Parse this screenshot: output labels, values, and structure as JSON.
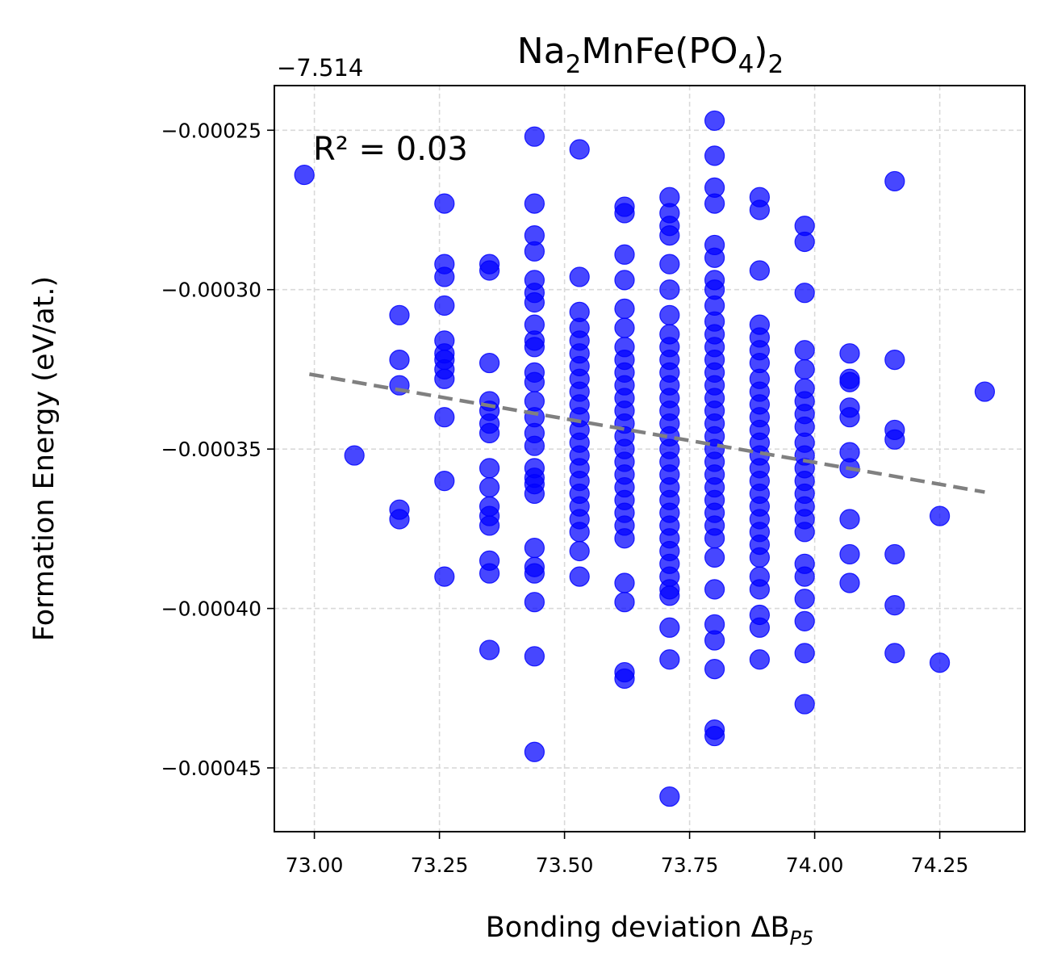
{
  "chart_data": {
    "type": "scatter",
    "title": {
      "main": "Na",
      "sub1": "2",
      "mid": "MnFe(PO",
      "sub2": "4",
      "close": ")",
      "sub3": "2"
    },
    "xlabel": {
      "main": "Bonding deviation ΔB",
      "sub": "P5"
    },
    "ylabel": "Formation Energy (eV/at.)",
    "y_offset_label": "−7.514",
    "annotation": "R² = 0.03",
    "xlim": [
      72.92,
      74.42
    ],
    "ylim": [
      -0.00047,
      -0.000236
    ],
    "x_ticks": [
      {
        "value": 73.0,
        "label": "73.00"
      },
      {
        "value": 73.25,
        "label": "73.25"
      },
      {
        "value": 73.5,
        "label": "73.50"
      },
      {
        "value": 73.75,
        "label": "73.75"
      },
      {
        "value": 74.0,
        "label": "74.00"
      },
      {
        "value": 74.25,
        "label": "74.25"
      }
    ],
    "y_ticks": [
      {
        "value": -0.00025,
        "label": "−0.00025"
      },
      {
        "value": -0.0003,
        "label": "−0.00030"
      },
      {
        "value": -0.00035,
        "label": "−0.00035"
      },
      {
        "value": -0.0004,
        "label": "−0.00040"
      },
      {
        "value": -0.00045,
        "label": "−0.00045"
      }
    ],
    "grid": true,
    "point_color": "#0000ff",
    "fit_line_color": "#808080",
    "fit_line": {
      "x": [
        72.99,
        74.34
      ],
      "y": [
        -0.0003265,
        -0.0003635
      ]
    },
    "points": [
      {
        "x": 72.98,
        "y": -0.000264
      },
      {
        "x": 73.08,
        "y": -0.000352
      },
      {
        "x": 73.17,
        "y": -0.000308
      },
      {
        "x": 73.17,
        "y": -0.000322
      },
      {
        "x": 73.17,
        "y": -0.00033
      },
      {
        "x": 73.17,
        "y": -0.000369
      },
      {
        "x": 73.17,
        "y": -0.000372
      },
      {
        "x": 73.26,
        "y": -0.000273
      },
      {
        "x": 73.26,
        "y": -0.000292
      },
      {
        "x": 73.26,
        "y": -0.000296
      },
      {
        "x": 73.26,
        "y": -0.000305
      },
      {
        "x": 73.26,
        "y": -0.000316
      },
      {
        "x": 73.26,
        "y": -0.00032
      },
      {
        "x": 73.26,
        "y": -0.000322
      },
      {
        "x": 73.26,
        "y": -0.000325
      },
      {
        "x": 73.26,
        "y": -0.000328
      },
      {
        "x": 73.26,
        "y": -0.00034
      },
      {
        "x": 73.26,
        "y": -0.00036
      },
      {
        "x": 73.26,
        "y": -0.00039
      },
      {
        "x": 73.35,
        "y": -0.000292
      },
      {
        "x": 73.35,
        "y": -0.000294
      },
      {
        "x": 73.35,
        "y": -0.000323
      },
      {
        "x": 73.35,
        "y": -0.000335
      },
      {
        "x": 73.35,
        "y": -0.000338
      },
      {
        "x": 73.35,
        "y": -0.000342
      },
      {
        "x": 73.35,
        "y": -0.000345
      },
      {
        "x": 73.35,
        "y": -0.000356
      },
      {
        "x": 73.35,
        "y": -0.000362
      },
      {
        "x": 73.35,
        "y": -0.000368
      },
      {
        "x": 73.35,
        "y": -0.000371
      },
      {
        "x": 73.35,
        "y": -0.000374
      },
      {
        "x": 73.35,
        "y": -0.000385
      },
      {
        "x": 73.35,
        "y": -0.000389
      },
      {
        "x": 73.35,
        "y": -0.000413
      },
      {
        "x": 73.44,
        "y": -0.000252
      },
      {
        "x": 73.44,
        "y": -0.000273
      },
      {
        "x": 73.44,
        "y": -0.000283
      },
      {
        "x": 73.44,
        "y": -0.000288
      },
      {
        "x": 73.44,
        "y": -0.000297
      },
      {
        "x": 73.44,
        "y": -0.000301
      },
      {
        "x": 73.44,
        "y": -0.000304
      },
      {
        "x": 73.44,
        "y": -0.000311
      },
      {
        "x": 73.44,
        "y": -0.000316
      },
      {
        "x": 73.44,
        "y": -0.000318
      },
      {
        "x": 73.44,
        "y": -0.000326
      },
      {
        "x": 73.44,
        "y": -0.000329
      },
      {
        "x": 73.44,
        "y": -0.000335
      },
      {
        "x": 73.44,
        "y": -0.00034
      },
      {
        "x": 73.44,
        "y": -0.000345
      },
      {
        "x": 73.44,
        "y": -0.000349
      },
      {
        "x": 73.44,
        "y": -0.000356
      },
      {
        "x": 73.44,
        "y": -0.000359
      },
      {
        "x": 73.44,
        "y": -0.000361
      },
      {
        "x": 73.44,
        "y": -0.000364
      },
      {
        "x": 73.44,
        "y": -0.000381
      },
      {
        "x": 73.44,
        "y": -0.000387
      },
      {
        "x": 73.44,
        "y": -0.000389
      },
      {
        "x": 73.44,
        "y": -0.000398
      },
      {
        "x": 73.44,
        "y": -0.000415
      },
      {
        "x": 73.44,
        "y": -0.000445
      },
      {
        "x": 73.53,
        "y": -0.000256
      },
      {
        "x": 73.53,
        "y": -0.000296
      },
      {
        "x": 73.53,
        "y": -0.000307
      },
      {
        "x": 73.53,
        "y": -0.000312
      },
      {
        "x": 73.53,
        "y": -0.000316
      },
      {
        "x": 73.53,
        "y": -0.00032
      },
      {
        "x": 73.53,
        "y": -0.000324
      },
      {
        "x": 73.53,
        "y": -0.000328
      },
      {
        "x": 73.53,
        "y": -0.000332
      },
      {
        "x": 73.53,
        "y": -0.000336
      },
      {
        "x": 73.53,
        "y": -0.00034
      },
      {
        "x": 73.53,
        "y": -0.000344
      },
      {
        "x": 73.53,
        "y": -0.000348
      },
      {
        "x": 73.53,
        "y": -0.000352
      },
      {
        "x": 73.53,
        "y": -0.000356
      },
      {
        "x": 73.53,
        "y": -0.00036
      },
      {
        "x": 73.53,
        "y": -0.000364
      },
      {
        "x": 73.53,
        "y": -0.000368
      },
      {
        "x": 73.53,
        "y": -0.000372
      },
      {
        "x": 73.53,
        "y": -0.000376
      },
      {
        "x": 73.53,
        "y": -0.000382
      },
      {
        "x": 73.53,
        "y": -0.00039
      },
      {
        "x": 73.62,
        "y": -0.000274
      },
      {
        "x": 73.62,
        "y": -0.000276
      },
      {
        "x": 73.62,
        "y": -0.000289
      },
      {
        "x": 73.62,
        "y": -0.000297
      },
      {
        "x": 73.62,
        "y": -0.000306
      },
      {
        "x": 73.62,
        "y": -0.000312
      },
      {
        "x": 73.62,
        "y": -0.000318
      },
      {
        "x": 73.62,
        "y": -0.000322
      },
      {
        "x": 73.62,
        "y": -0.000326
      },
      {
        "x": 73.62,
        "y": -0.00033
      },
      {
        "x": 73.62,
        "y": -0.000334
      },
      {
        "x": 73.62,
        "y": -0.000338
      },
      {
        "x": 73.62,
        "y": -0.000342
      },
      {
        "x": 73.62,
        "y": -0.000346
      },
      {
        "x": 73.62,
        "y": -0.00035
      },
      {
        "x": 73.62,
        "y": -0.000354
      },
      {
        "x": 73.62,
        "y": -0.000358
      },
      {
        "x": 73.62,
        "y": -0.000362
      },
      {
        "x": 73.62,
        "y": -0.000366
      },
      {
        "x": 73.62,
        "y": -0.00037
      },
      {
        "x": 73.62,
        "y": -0.000374
      },
      {
        "x": 73.62,
        "y": -0.000378
      },
      {
        "x": 73.62,
        "y": -0.000392
      },
      {
        "x": 73.62,
        "y": -0.000398
      },
      {
        "x": 73.62,
        "y": -0.00042
      },
      {
        "x": 73.62,
        "y": -0.000422
      },
      {
        "x": 73.71,
        "y": -0.000271
      },
      {
        "x": 73.71,
        "y": -0.000276
      },
      {
        "x": 73.71,
        "y": -0.00028
      },
      {
        "x": 73.71,
        "y": -0.000283
      },
      {
        "x": 73.71,
        "y": -0.000292
      },
      {
        "x": 73.71,
        "y": -0.0003
      },
      {
        "x": 73.71,
        "y": -0.000308
      },
      {
        "x": 73.71,
        "y": -0.000314
      },
      {
        "x": 73.71,
        "y": -0.000318
      },
      {
        "x": 73.71,
        "y": -0.000322
      },
      {
        "x": 73.71,
        "y": -0.000326
      },
      {
        "x": 73.71,
        "y": -0.00033
      },
      {
        "x": 73.71,
        "y": -0.000334
      },
      {
        "x": 73.71,
        "y": -0.000338
      },
      {
        "x": 73.71,
        "y": -0.000342
      },
      {
        "x": 73.71,
        "y": -0.000346
      },
      {
        "x": 73.71,
        "y": -0.00035
      },
      {
        "x": 73.71,
        "y": -0.000354
      },
      {
        "x": 73.71,
        "y": -0.000358
      },
      {
        "x": 73.71,
        "y": -0.000362
      },
      {
        "x": 73.71,
        "y": -0.000366
      },
      {
        "x": 73.71,
        "y": -0.00037
      },
      {
        "x": 73.71,
        "y": -0.000374
      },
      {
        "x": 73.71,
        "y": -0.000378
      },
      {
        "x": 73.71,
        "y": -0.000382
      },
      {
        "x": 73.71,
        "y": -0.000386
      },
      {
        "x": 73.71,
        "y": -0.00039
      },
      {
        "x": 73.71,
        "y": -0.000394
      },
      {
        "x": 73.71,
        "y": -0.000396
      },
      {
        "x": 73.71,
        "y": -0.000406
      },
      {
        "x": 73.71,
        "y": -0.000416
      },
      {
        "x": 73.71,
        "y": -0.000459
      },
      {
        "x": 73.8,
        "y": -0.000247
      },
      {
        "x": 73.8,
        "y": -0.000258
      },
      {
        "x": 73.8,
        "y": -0.000268
      },
      {
        "x": 73.8,
        "y": -0.000273
      },
      {
        "x": 73.8,
        "y": -0.000286
      },
      {
        "x": 73.8,
        "y": -0.00029
      },
      {
        "x": 73.8,
        "y": -0.000297
      },
      {
        "x": 73.8,
        "y": -0.0003
      },
      {
        "x": 73.8,
        "y": -0.000305
      },
      {
        "x": 73.8,
        "y": -0.00031
      },
      {
        "x": 73.8,
        "y": -0.000314
      },
      {
        "x": 73.8,
        "y": -0.000318
      },
      {
        "x": 73.8,
        "y": -0.000322
      },
      {
        "x": 73.8,
        "y": -0.000326
      },
      {
        "x": 73.8,
        "y": -0.00033
      },
      {
        "x": 73.8,
        "y": -0.000334
      },
      {
        "x": 73.8,
        "y": -0.000338
      },
      {
        "x": 73.8,
        "y": -0.000342
      },
      {
        "x": 73.8,
        "y": -0.000346
      },
      {
        "x": 73.8,
        "y": -0.00035
      },
      {
        "x": 73.8,
        "y": -0.000354
      },
      {
        "x": 73.8,
        "y": -0.000358
      },
      {
        "x": 73.8,
        "y": -0.000362
      },
      {
        "x": 73.8,
        "y": -0.000366
      },
      {
        "x": 73.8,
        "y": -0.00037
      },
      {
        "x": 73.8,
        "y": -0.000374
      },
      {
        "x": 73.8,
        "y": -0.000378
      },
      {
        "x": 73.8,
        "y": -0.000384
      },
      {
        "x": 73.8,
        "y": -0.000394
      },
      {
        "x": 73.8,
        "y": -0.000405
      },
      {
        "x": 73.8,
        "y": -0.00041
      },
      {
        "x": 73.8,
        "y": -0.000419
      },
      {
        "x": 73.8,
        "y": -0.000438
      },
      {
        "x": 73.8,
        "y": -0.00044
      },
      {
        "x": 73.89,
        "y": -0.000271
      },
      {
        "x": 73.89,
        "y": -0.000275
      },
      {
        "x": 73.89,
        "y": -0.000294
      },
      {
        "x": 73.89,
        "y": -0.000311
      },
      {
        "x": 73.89,
        "y": -0.000315
      },
      {
        "x": 73.89,
        "y": -0.000319
      },
      {
        "x": 73.89,
        "y": -0.000323
      },
      {
        "x": 73.89,
        "y": -0.000328
      },
      {
        "x": 73.89,
        "y": -0.000332
      },
      {
        "x": 73.89,
        "y": -0.000336
      },
      {
        "x": 73.89,
        "y": -0.00034
      },
      {
        "x": 73.89,
        "y": -0.000344
      },
      {
        "x": 73.89,
        "y": -0.000348
      },
      {
        "x": 73.89,
        "y": -0.000352
      },
      {
        "x": 73.89,
        "y": -0.000356
      },
      {
        "x": 73.89,
        "y": -0.00036
      },
      {
        "x": 73.89,
        "y": -0.000364
      },
      {
        "x": 73.89,
        "y": -0.000368
      },
      {
        "x": 73.89,
        "y": -0.000372
      },
      {
        "x": 73.89,
        "y": -0.000376
      },
      {
        "x": 73.89,
        "y": -0.00038
      },
      {
        "x": 73.89,
        "y": -0.000384
      },
      {
        "x": 73.89,
        "y": -0.00039
      },
      {
        "x": 73.89,
        "y": -0.000394
      },
      {
        "x": 73.89,
        "y": -0.000402
      },
      {
        "x": 73.89,
        "y": -0.000406
      },
      {
        "x": 73.89,
        "y": -0.000416
      },
      {
        "x": 73.98,
        "y": -0.00028
      },
      {
        "x": 73.98,
        "y": -0.000285
      },
      {
        "x": 73.98,
        "y": -0.000301
      },
      {
        "x": 73.98,
        "y": -0.000319
      },
      {
        "x": 73.98,
        "y": -0.000325
      },
      {
        "x": 73.98,
        "y": -0.000331
      },
      {
        "x": 73.98,
        "y": -0.000335
      },
      {
        "x": 73.98,
        "y": -0.000339
      },
      {
        "x": 73.98,
        "y": -0.000343
      },
      {
        "x": 73.98,
        "y": -0.000348
      },
      {
        "x": 73.98,
        "y": -0.000352
      },
      {
        "x": 73.98,
        "y": -0.000356
      },
      {
        "x": 73.98,
        "y": -0.00036
      },
      {
        "x": 73.98,
        "y": -0.000364
      },
      {
        "x": 73.98,
        "y": -0.000368
      },
      {
        "x": 73.98,
        "y": -0.000372
      },
      {
        "x": 73.98,
        "y": -0.000376
      },
      {
        "x": 73.98,
        "y": -0.000386
      },
      {
        "x": 73.98,
        "y": -0.00039
      },
      {
        "x": 73.98,
        "y": -0.000397
      },
      {
        "x": 73.98,
        "y": -0.000404
      },
      {
        "x": 73.98,
        "y": -0.000414
      },
      {
        "x": 73.98,
        "y": -0.00043
      },
      {
        "x": 74.07,
        "y": -0.00032
      },
      {
        "x": 74.07,
        "y": -0.000328
      },
      {
        "x": 74.07,
        "y": -0.000329
      },
      {
        "x": 74.07,
        "y": -0.000337
      },
      {
        "x": 74.07,
        "y": -0.00034
      },
      {
        "x": 74.07,
        "y": -0.000351
      },
      {
        "x": 74.07,
        "y": -0.000356
      },
      {
        "x": 74.07,
        "y": -0.000372
      },
      {
        "x": 74.07,
        "y": -0.000383
      },
      {
        "x": 74.07,
        "y": -0.000392
      },
      {
        "x": 74.16,
        "y": -0.000266
      },
      {
        "x": 74.16,
        "y": -0.000322
      },
      {
        "x": 74.16,
        "y": -0.000344
      },
      {
        "x": 74.16,
        "y": -0.000347
      },
      {
        "x": 74.16,
        "y": -0.000383
      },
      {
        "x": 74.16,
        "y": -0.000399
      },
      {
        "x": 74.16,
        "y": -0.000414
      },
      {
        "x": 74.25,
        "y": -0.000371
      },
      {
        "x": 74.25,
        "y": -0.000417
      },
      {
        "x": 74.34,
        "y": -0.000332
      }
    ]
  }
}
